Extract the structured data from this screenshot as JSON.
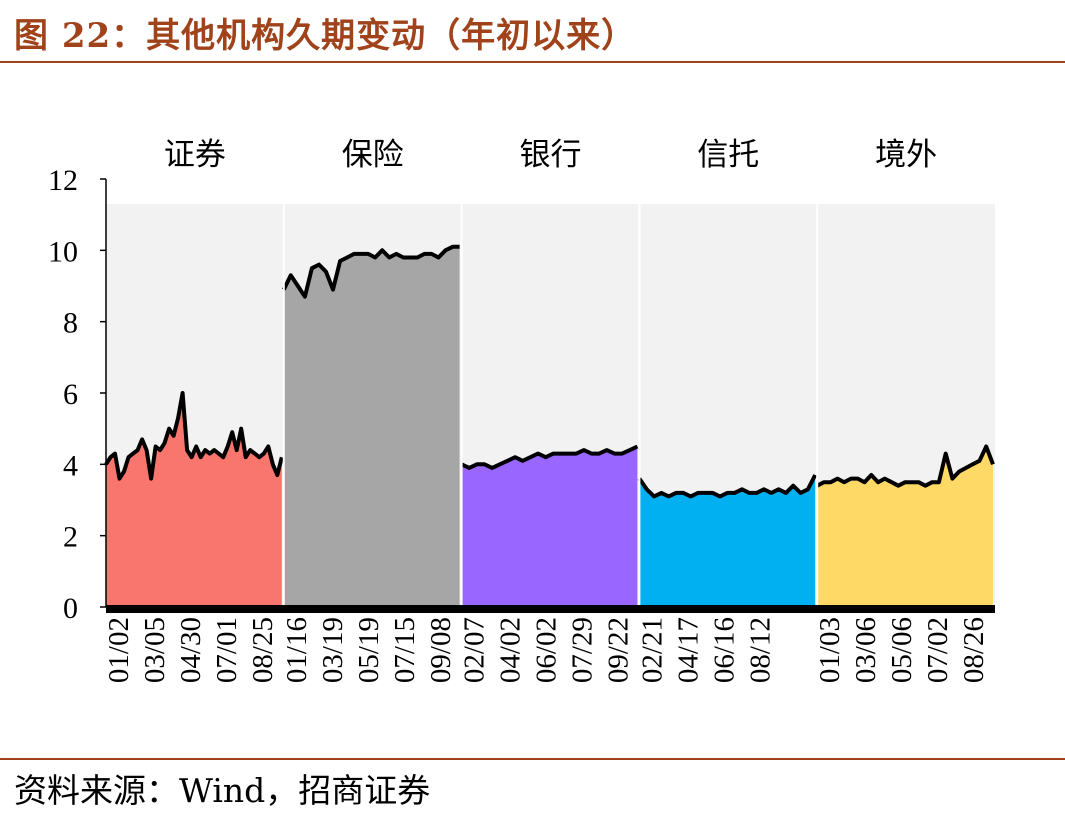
{
  "title": "图 22：其他机构久期变动（年初以来）",
  "source": "资料来源：Wind，招商证券",
  "chart_data": {
    "type": "area",
    "ylim": [
      0,
      12
    ],
    "yticks": [
      0,
      2,
      4,
      6,
      8,
      10,
      12
    ],
    "grid": false,
    "legend": "none",
    "background_color": "#f2f2f2",
    "panels": [
      {
        "name": "证券",
        "color": "#f8766d",
        "xticks": [
          "01/02",
          "03/05",
          "04/30",
          "07/01",
          "08/25"
        ],
        "values": [
          4.0,
          4.2,
          4.3,
          3.6,
          3.8,
          4.2,
          4.3,
          4.4,
          4.7,
          4.4,
          3.6,
          4.5,
          4.4,
          4.6,
          5.0,
          4.8,
          5.3,
          6.0,
          4.4,
          4.2,
          4.5,
          4.2,
          4.4,
          4.3,
          4.4,
          4.3,
          4.2,
          4.5,
          4.9,
          4.4,
          5.0,
          4.2,
          4.4,
          4.3,
          4.2,
          4.3,
          4.5,
          4.0,
          3.7,
          4.2
        ]
      },
      {
        "name": "保险",
        "color": "#a6a6a6",
        "xticks": [
          "01/16",
          "03/19",
          "05/19",
          "07/15",
          "09/08"
        ],
        "values": [
          8.9,
          9.3,
          9.0,
          8.7,
          9.5,
          9.6,
          9.4,
          8.9,
          9.7,
          9.8,
          9.9,
          9.9,
          9.9,
          9.8,
          10.0,
          9.8,
          9.9,
          9.8,
          9.8,
          9.8,
          9.9,
          9.9,
          9.8,
          10.0,
          10.1,
          10.1
        ]
      },
      {
        "name": "银行",
        "color": "#9966ff",
        "xticks": [
          "02/07",
          "04/02",
          "06/02",
          "07/29",
          "09/22"
        ],
        "values": [
          4.0,
          3.9,
          4.0,
          4.0,
          3.9,
          4.0,
          4.1,
          4.2,
          4.1,
          4.2,
          4.3,
          4.2,
          4.3,
          4.3,
          4.3,
          4.3,
          4.4,
          4.3,
          4.3,
          4.4,
          4.3,
          4.3,
          4.4,
          4.5
        ]
      },
      {
        "name": "信托",
        "color": "#00b0f0",
        "xticks": [
          "02/21",
          "04/17",
          "06/16",
          "08/12"
        ],
        "values": [
          3.6,
          3.3,
          3.1,
          3.2,
          3.1,
          3.2,
          3.2,
          3.1,
          3.2,
          3.2,
          3.2,
          3.1,
          3.2,
          3.2,
          3.3,
          3.2,
          3.2,
          3.3,
          3.2,
          3.3,
          3.2,
          3.4,
          3.2,
          3.3,
          3.7
        ]
      },
      {
        "name": "境外",
        "color": "#ffd966",
        "xticks": [
          "01/03",
          "03/06",
          "05/06",
          "07/02",
          "08/26"
        ],
        "values": [
          3.4,
          3.5,
          3.5,
          3.6,
          3.5,
          3.6,
          3.6,
          3.5,
          3.7,
          3.5,
          3.6,
          3.5,
          3.4,
          3.5,
          3.5,
          3.5,
          3.4,
          3.5,
          3.5,
          4.3,
          3.6,
          3.8,
          3.9,
          4.0,
          4.1,
          4.5,
          4.0
        ]
      }
    ]
  }
}
